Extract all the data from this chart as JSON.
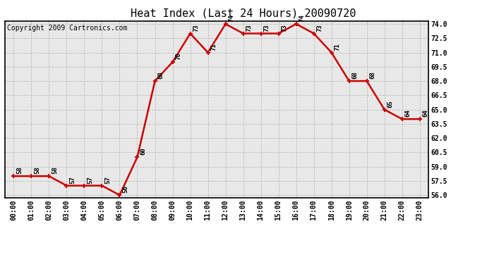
{
  "title": "Heat Index (Last 24 Hours) 20090720",
  "copyright": "Copyright 2009 Cartronics.com",
  "hours": [
    "00:00",
    "01:00",
    "02:00",
    "03:00",
    "04:00",
    "05:00",
    "06:00",
    "07:00",
    "08:00",
    "09:00",
    "10:00",
    "11:00",
    "12:00",
    "13:00",
    "14:00",
    "15:00",
    "16:00",
    "17:00",
    "18:00",
    "19:00",
    "20:00",
    "21:00",
    "22:00",
    "23:00"
  ],
  "values": [
    58,
    58,
    58,
    57,
    57,
    57,
    56,
    60,
    68,
    70,
    73,
    71,
    74,
    73,
    73,
    73,
    74,
    73,
    71,
    68,
    68,
    65,
    64,
    64
  ],
  "ylim_min": 55.7,
  "ylim_max": 74.3,
  "yticks": [
    56.0,
    57.5,
    59.0,
    60.5,
    62.0,
    63.5,
    65.0,
    66.5,
    68.0,
    69.5,
    71.0,
    72.5,
    74.0
  ],
  "line_color": "#cc0000",
  "bg_color": "#ffffff",
  "plot_bg_color": "#e8e8e8",
  "grid_color": "#bbbbbb",
  "title_fontsize": 11,
  "copyright_fontsize": 7,
  "tick_fontsize": 7,
  "annotation_fontsize": 6.5
}
